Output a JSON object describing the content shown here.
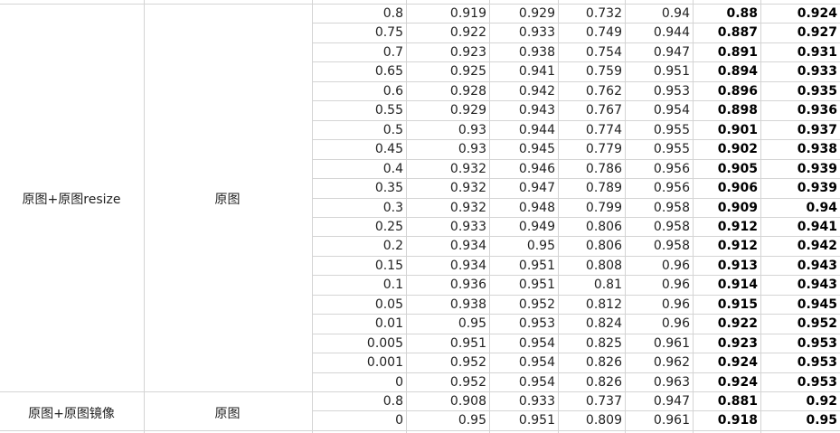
{
  "groups": [
    {
      "method": "原图+原图resize",
      "source": "原图"
    },
    {
      "method": "原图+原图镜像",
      "source": "原图"
    }
  ],
  "rows": [
    [
      "0.8",
      "0.919",
      "0.929",
      "0.732",
      "0.94",
      "0.88",
      "0.924"
    ],
    [
      "0.75",
      "0.922",
      "0.933",
      "0.749",
      "0.944",
      "0.887",
      "0.927"
    ],
    [
      "0.7",
      "0.923",
      "0.938",
      "0.754",
      "0.947",
      "0.891",
      "0.931"
    ],
    [
      "0.65",
      "0.925",
      "0.941",
      "0.759",
      "0.951",
      "0.894",
      "0.933"
    ],
    [
      "0.6",
      "0.928",
      "0.942",
      "0.762",
      "0.953",
      "0.896",
      "0.935"
    ],
    [
      "0.55",
      "0.929",
      "0.943",
      "0.767",
      "0.954",
      "0.898",
      "0.936"
    ],
    [
      "0.5",
      "0.93",
      "0.944",
      "0.774",
      "0.955",
      "0.901",
      "0.937"
    ],
    [
      "0.45",
      "0.93",
      "0.945",
      "0.779",
      "0.955",
      "0.902",
      "0.938"
    ],
    [
      "0.4",
      "0.932",
      "0.946",
      "0.786",
      "0.956",
      "0.905",
      "0.939"
    ],
    [
      "0.35",
      "0.932",
      "0.947",
      "0.789",
      "0.956",
      "0.906",
      "0.939"
    ],
    [
      "0.3",
      "0.932",
      "0.948",
      "0.799",
      "0.958",
      "0.909",
      "0.94"
    ],
    [
      "0.25",
      "0.933",
      "0.949",
      "0.806",
      "0.958",
      "0.912",
      "0.941"
    ],
    [
      "0.2",
      "0.934",
      "0.95",
      "0.806",
      "0.958",
      "0.912",
      "0.942"
    ],
    [
      "0.15",
      "0.934",
      "0.951",
      "0.808",
      "0.96",
      "0.913",
      "0.943"
    ],
    [
      "0.1",
      "0.936",
      "0.951",
      "0.81",
      "0.96",
      "0.914",
      "0.943"
    ],
    [
      "0.05",
      "0.938",
      "0.952",
      "0.812",
      "0.96",
      "0.915",
      "0.945"
    ],
    [
      "0.01",
      "0.95",
      "0.953",
      "0.824",
      "0.96",
      "0.922",
      "0.952"
    ],
    [
      "0.005",
      "0.951",
      "0.954",
      "0.825",
      "0.961",
      "0.923",
      "0.953"
    ],
    [
      "0.001",
      "0.952",
      "0.954",
      "0.826",
      "0.962",
      "0.924",
      "0.953"
    ],
    [
      "0",
      "0.952",
      "0.954",
      "0.826",
      "0.963",
      "0.924",
      "0.953"
    ],
    [
      "0.8",
      "0.908",
      "0.933",
      "0.737",
      "0.947",
      "0.881",
      "0.92"
    ],
    [
      "0",
      "0.95",
      "0.951",
      "0.809",
      "0.961",
      "0.918",
      "0.95"
    ]
  ],
  "bold_columns": [
    5,
    6
  ],
  "gridline_color": "#d4d4d4"
}
